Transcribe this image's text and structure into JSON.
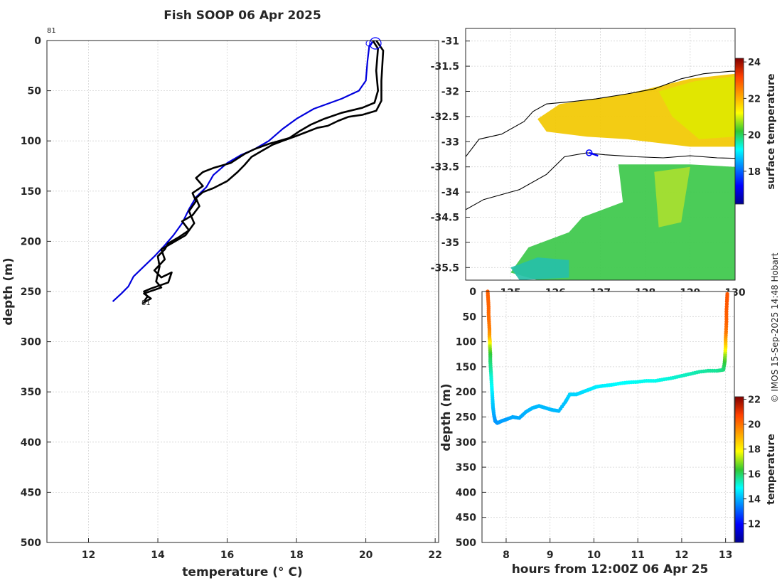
{
  "colors": {
    "series_black": "#000000",
    "series_blue": "#0000dd",
    "marker_blue": "#0000ff",
    "land": "#000000"
  },
  "chart_data": [
    {
      "type": "line",
      "title": "Fish SOOP 06 Apr 2025",
      "xlabel": "temperature (° C)",
      "ylabel": "depth (m)",
      "xlim": [
        10.8,
        22.1
      ],
      "ylim": [
        0,
        500
      ],
      "y_reversed": true,
      "x_ticks": [
        12,
        14,
        16,
        18,
        20,
        22
      ],
      "y_ticks": [
        0,
        50,
        100,
        150,
        200,
        250,
        300,
        350,
        400,
        450,
        500
      ],
      "annotations": [
        "81",
        "81"
      ],
      "series": [
        {
          "name": "profile-blue",
          "color": "#0000dd",
          "points": [
            [
              20.25,
              0
            ],
            [
              20.1,
              5
            ],
            [
              20.05,
              20
            ],
            [
              20.0,
              40
            ],
            [
              19.8,
              50
            ],
            [
              19.3,
              58
            ],
            [
              18.5,
              68
            ],
            [
              18.0,
              78
            ],
            [
              17.6,
              88
            ],
            [
              17.2,
              100
            ],
            [
              16.8,
              108
            ],
            [
              16.4,
              114
            ],
            [
              16.0,
              122
            ],
            [
              15.6,
              134
            ],
            [
              15.4,
              146
            ],
            [
              15.1,
              156
            ],
            [
              14.9,
              168
            ],
            [
              14.7,
              182
            ],
            [
              14.45,
              194
            ],
            [
              14.2,
              204
            ],
            [
              13.9,
              215
            ],
            [
              13.6,
              225
            ],
            [
              13.3,
              235
            ],
            [
              13.15,
              245
            ],
            [
              12.95,
              252
            ],
            [
              12.7,
              260
            ]
          ]
        },
        {
          "name": "profile-black-1",
          "color": "#000000",
          "points": [
            [
              20.2,
              0
            ],
            [
              20.35,
              8
            ],
            [
              20.3,
              30
            ],
            [
              20.35,
              50
            ],
            [
              20.25,
              62
            ],
            [
              19.9,
              67
            ],
            [
              19.3,
              72
            ],
            [
              18.8,
              78
            ],
            [
              18.4,
              84
            ],
            [
              18.1,
              90
            ],
            [
              17.8,
              97
            ],
            [
              17.2,
              103
            ],
            [
              16.8,
              108
            ],
            [
              16.5,
              113
            ],
            [
              16.1,
              122
            ],
            [
              15.6,
              127
            ],
            [
              15.3,
              131
            ],
            [
              15.1,
              137
            ],
            [
              15.3,
              145
            ],
            [
              15.0,
              152
            ],
            [
              15.1,
              160
            ],
            [
              14.9,
              170
            ],
            [
              15.05,
              182
            ],
            [
              14.8,
              194
            ],
            [
              14.5,
              200
            ],
            [
              14.3,
              204
            ],
            [
              14.1,
              208
            ],
            [
              14.2,
              218
            ],
            [
              13.9,
              229
            ],
            [
              14.1,
              236
            ],
            [
              14.4,
              231
            ],
            [
              14.3,
              241
            ],
            [
              13.8,
              247
            ],
            [
              13.6,
              250
            ],
            [
              13.7,
              255
            ],
            [
              13.6,
              260
            ]
          ]
        },
        {
          "name": "profile-black-2",
          "color": "#000000",
          "points": [
            [
              20.3,
              0
            ],
            [
              20.5,
              10
            ],
            [
              20.45,
              40
            ],
            [
              20.45,
              60
            ],
            [
              20.3,
              70
            ],
            [
              19.9,
              74
            ],
            [
              19.5,
              76
            ],
            [
              19.2,
              80
            ],
            [
              18.9,
              85
            ],
            [
              18.6,
              87
            ],
            [
              18.3,
              91
            ],
            [
              18.0,
              95
            ],
            [
              17.6,
              100
            ],
            [
              17.3,
              104
            ],
            [
              17.0,
              110
            ],
            [
              16.7,
              116
            ],
            [
              16.5,
              124
            ],
            [
              16.3,
              131
            ],
            [
              16.0,
              140
            ],
            [
              15.6,
              147
            ],
            [
              15.3,
              151
            ],
            [
              15.1,
              157
            ],
            [
              15.2,
              165
            ],
            [
              15.0,
              174
            ],
            [
              14.7,
              180
            ],
            [
              14.9,
              189
            ],
            [
              14.6,
              196
            ],
            [
              14.3,
              202
            ],
            [
              14.2,
              208
            ],
            [
              14.0,
              215
            ],
            [
              14.05,
              225
            ],
            [
              13.95,
              240
            ],
            [
              14.1,
              246
            ],
            [
              13.6,
              252
            ],
            [
              13.8,
              257
            ],
            [
              13.55,
              262
            ]
          ]
        }
      ]
    },
    {
      "type": "heatmap",
      "title": "",
      "xlabel": "",
      "ylabel": "",
      "xlim": [
        124,
        130
      ],
      "ylim": [
        -35.75,
        -30.75
      ],
      "x_ticks": [
        125,
        126,
        127,
        128,
        129,
        130
      ],
      "y_ticks": [
        -31,
        -31.5,
        -32,
        -32.5,
        -33,
        -33.5,
        -34,
        -34.5,
        -35,
        -35.5
      ],
      "colorbar": {
        "label": "surface temperature",
        "range": [
          16.2,
          24.2
        ],
        "ticks": [
          18,
          20,
          22,
          24
        ]
      },
      "coast_contours": [
        {
          "name": "shelf-north",
          "points": [
            [
              124.0,
              -33.3
            ],
            [
              124.3,
              -32.95
            ],
            [
              124.8,
              -32.85
            ],
            [
              125.3,
              -32.6
            ],
            [
              125.5,
              -32.4
            ],
            [
              125.8,
              -32.25
            ],
            [
              126.4,
              -32.2
            ],
            [
              126.9,
              -32.15
            ],
            [
              127.6,
              -32.05
            ],
            [
              128.2,
              -31.95
            ],
            [
              128.8,
              -31.75
            ],
            [
              129.3,
              -31.65
            ],
            [
              129.9,
              -31.6
            ],
            [
              130.0,
              -31.6
            ]
          ]
        },
        {
          "name": "shelf-south",
          "points": [
            [
              124.0,
              -34.35
            ],
            [
              124.4,
              -34.15
            ],
            [
              125.2,
              -33.95
            ],
            [
              125.8,
              -33.65
            ],
            [
              126.2,
              -33.3
            ],
            [
              126.7,
              -33.22
            ],
            [
              127.1,
              -33.26
            ],
            [
              127.8,
              -33.3
            ],
            [
              128.4,
              -33.32
            ],
            [
              129.0,
              -33.28
            ],
            [
              129.6,
              -33.32
            ],
            [
              130.0,
              -33.33
            ]
          ]
        }
      ],
      "ship_track": [
        [
          126.75,
          -33.22
        ],
        [
          126.85,
          -33.25
        ],
        [
          126.95,
          -33.28
        ]
      ],
      "ship_marker": [
        126.75,
        -33.22
      ],
      "sst_regions": [
        {
          "name": "warm-band",
          "color": "#f2c800",
          "poly": [
            [
              125.6,
              -32.55
            ],
            [
              126.1,
              -32.25
            ],
            [
              126.9,
              -32.15
            ],
            [
              127.6,
              -32.05
            ],
            [
              128.3,
              -31.9
            ],
            [
              129.0,
              -31.75
            ],
            [
              130.0,
              -31.65
            ],
            [
              130.0,
              -33.1
            ],
            [
              129.0,
              -33.1
            ],
            [
              127.6,
              -32.95
            ],
            [
              126.7,
              -32.9
            ],
            [
              125.8,
              -32.8
            ]
          ]
        },
        {
          "name": "yellow-patch",
          "color": "#dfe800",
          "poly": [
            [
              128.3,
              -32.0
            ],
            [
              129.1,
              -31.8
            ],
            [
              130.0,
              -31.7
            ],
            [
              130.0,
              -32.9
            ],
            [
              129.2,
              -32.95
            ],
            [
              128.6,
              -32.5
            ]
          ]
        },
        {
          "name": "green-south",
          "color": "#3cc84a",
          "poly": [
            [
              127.4,
              -33.45
            ],
            [
              129.0,
              -33.45
            ],
            [
              130.0,
              -33.5
            ],
            [
              130.0,
              -35.75
            ],
            [
              125.6,
              -35.75
            ],
            [
              125.0,
              -35.6
            ],
            [
              125.4,
              -35.1
            ],
            [
              126.3,
              -34.8
            ],
            [
              126.6,
              -34.5
            ],
            [
              127.5,
              -34.2
            ]
          ]
        },
        {
          "name": "cyan-patch",
          "color": "#26c0a8",
          "poly": [
            [
              125.0,
              -35.5
            ],
            [
              125.6,
              -35.3
            ],
            [
              126.3,
              -35.35
            ],
            [
              126.3,
              -35.7
            ],
            [
              125.2,
              -35.75
            ]
          ]
        },
        {
          "name": "lime-streaks",
          "color": "#a8e030",
          "poly": [
            [
              128.2,
              -33.6
            ],
            [
              129.0,
              -33.5
            ],
            [
              128.8,
              -34.6
            ],
            [
              128.3,
              -34.7
            ]
          ]
        }
      ]
    },
    {
      "type": "scatter",
      "title": "",
      "xlabel": "hours from 12:00Z 06 Apr 25",
      "ylabel": "depth (m)",
      "xlim": [
        7.45,
        13.2
      ],
      "ylim": [
        0,
        500
      ],
      "y_reversed": true,
      "x_ticks": [
        8,
        9,
        10,
        11,
        12,
        13
      ],
      "y_ticks": [
        0,
        50,
        100,
        150,
        200,
        250,
        300,
        350,
        400,
        450,
        500
      ],
      "colorbar": {
        "label": "temperature",
        "range": [
          10.5,
          22.2
        ],
        "ticks": [
          12,
          14,
          16,
          18,
          20,
          22
        ]
      },
      "points": [
        [
          7.58,
          0,
          20.3
        ],
        [
          7.59,
          15,
          20.2
        ],
        [
          7.6,
          30,
          20.2
        ],
        [
          7.6,
          45,
          20.1
        ],
        [
          7.61,
          60,
          20.0
        ],
        [
          7.62,
          75,
          19.8
        ],
        [
          7.62,
          90,
          19.2
        ],
        [
          7.63,
          100,
          18.3
        ],
        [
          7.63,
          110,
          17.2
        ],
        [
          7.64,
          125,
          16.3
        ],
        [
          7.64,
          140,
          15.9
        ],
        [
          7.65,
          155,
          15.6
        ],
        [
          7.66,
          170,
          15.2
        ],
        [
          7.67,
          185,
          15.0
        ],
        [
          7.68,
          200,
          14.7
        ],
        [
          7.69,
          215,
          14.4
        ],
        [
          7.7,
          230,
          14.2
        ],
        [
          7.72,
          245,
          13.9
        ],
        [
          7.75,
          258,
          13.7
        ],
        [
          7.8,
          262,
          13.7
        ],
        [
          7.9,
          258,
          13.8
        ],
        [
          8.0,
          255,
          13.8
        ],
        [
          8.15,
          250,
          13.9
        ],
        [
          8.3,
          252,
          13.9
        ],
        [
          8.45,
          240,
          14.0
        ],
        [
          8.6,
          232,
          14.1
        ],
        [
          8.75,
          228,
          14.1
        ],
        [
          8.9,
          232,
          14.1
        ],
        [
          9.05,
          236,
          14.1
        ],
        [
          9.2,
          238,
          14.1
        ],
        [
          9.35,
          220,
          14.2
        ],
        [
          9.45,
          205,
          14.4
        ],
        [
          9.6,
          205,
          14.4
        ],
        [
          9.75,
          200,
          14.5
        ],
        [
          9.9,
          195,
          14.6
        ],
        [
          10.05,
          190,
          14.7
        ],
        [
          10.2,
          188,
          14.7
        ],
        [
          10.4,
          186,
          14.8
        ],
        [
          10.6,
          183,
          14.9
        ],
        [
          10.8,
          181,
          14.9
        ],
        [
          11.0,
          180,
          15.0
        ],
        [
          11.2,
          178,
          15.0
        ],
        [
          11.4,
          178,
          15.0
        ],
        [
          11.6,
          175,
          15.1
        ],
        [
          11.8,
          172,
          15.2
        ],
        [
          12.0,
          168,
          15.3
        ],
        [
          12.2,
          164,
          15.4
        ],
        [
          12.4,
          160,
          15.5
        ],
        [
          12.6,
          158,
          15.6
        ],
        [
          12.8,
          158,
          15.6
        ],
        [
          12.95,
          156,
          15.8
        ],
        [
          12.98,
          140,
          16.3
        ],
        [
          12.99,
          125,
          17.1
        ],
        [
          13.0,
          110,
          18.2
        ],
        [
          13.0,
          95,
          19.1
        ],
        [
          13.01,
          80,
          19.9
        ],
        [
          13.02,
          60,
          20.2
        ],
        [
          13.02,
          40,
          20.3
        ],
        [
          13.03,
          20,
          20.4
        ],
        [
          13.04,
          5,
          20.4
        ]
      ]
    }
  ],
  "watermark": "© IMOS 15-Sep-2025 14:48 Hobart"
}
